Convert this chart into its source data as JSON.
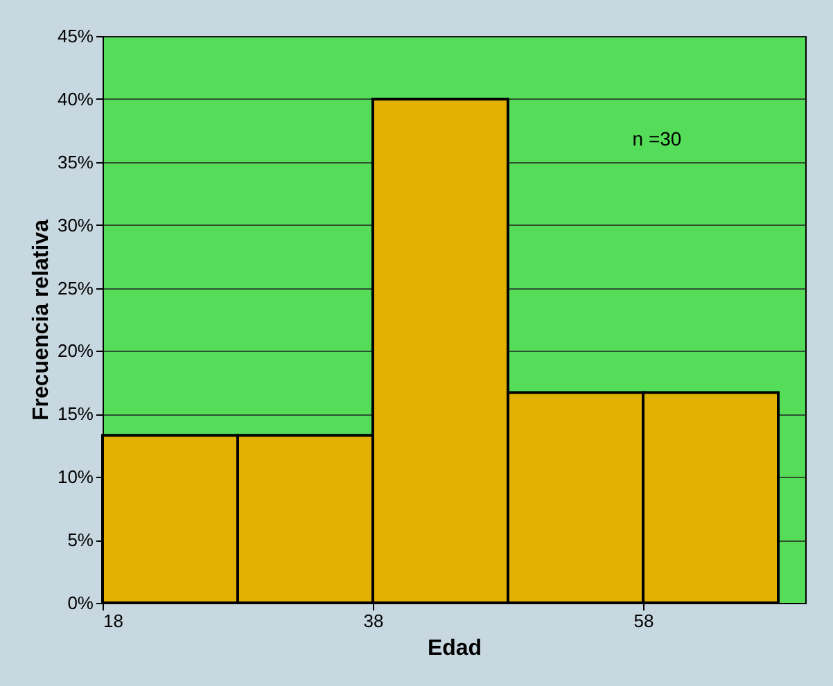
{
  "chart_data": {
    "type": "histogram",
    "xlabel": "Edad",
    "ylabel": "Frecuencia relativa",
    "bins": [
      18,
      28,
      38,
      48,
      58,
      68
    ],
    "values": [
      13.3,
      13.3,
      40,
      16.7,
      16.7
    ],
    "color": "#e2b000",
    "xlim": [
      18,
      70
    ],
    "xticks": [
      18,
      38,
      58
    ],
    "ylim": [
      0,
      45
    ],
    "yticks": [
      {
        "value": 0,
        "label": "0%"
      },
      {
        "value": 5,
        "label": "5%"
      },
      {
        "value": 10,
        "label": "10%"
      },
      {
        "value": 15,
        "label": "15%"
      },
      {
        "value": 20,
        "label": "20%"
      },
      {
        "value": 25,
        "label": "25%"
      },
      {
        "value": 30,
        "label": "30%"
      },
      {
        "value": 35,
        "label": "35%"
      },
      {
        "value": 40,
        "label": "40%"
      },
      {
        "value": 45,
        "label": "45%"
      }
    ],
    "grid": "y",
    "annotations": [
      "n =30"
    ]
  }
}
